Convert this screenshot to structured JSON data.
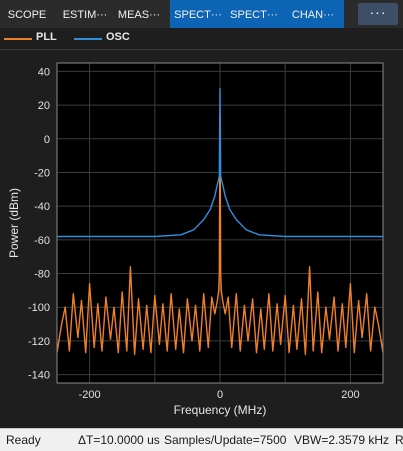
{
  "toolbar": {
    "tabs": [
      {
        "label": "SCOPE",
        "active": false
      },
      {
        "label": "ESTIM···",
        "active": false
      },
      {
        "label": "MEAS···",
        "active": false
      },
      {
        "label": "SPECT···",
        "active": true
      },
      {
        "label": "SPECT···",
        "active": true
      },
      {
        "label": "CHAN···",
        "active": true
      }
    ],
    "more_icon": "more-options-icon",
    "more_label": "···"
  },
  "legend": [
    {
      "name": "PLL",
      "color": "#f07f2a"
    },
    {
      "name": "OSC",
      "color": "#2f8fdc"
    }
  ],
  "status": {
    "state": "Ready",
    "delta_t": "ΔT=10.0000 us",
    "samples": "Samples/Update=7500",
    "vbw": "VBW=2.3579 kHz",
    "rbw": "R"
  },
  "colors": {
    "background": "#000000",
    "grid": "#3c3c3c",
    "axis_text": "#e0e0e0"
  },
  "chart_data": {
    "type": "line",
    "xlabel": "Frequency (MHz)",
    "ylabel": "Power (dBm)",
    "xlim": [
      -250,
      250
    ],
    "ylim": [
      -145,
      45
    ],
    "xticks": [
      -200,
      0,
      200
    ],
    "yticks": [
      40,
      20,
      0,
      -20,
      -40,
      -60,
      -80,
      -100,
      -120,
      -140
    ],
    "grid": true,
    "series": [
      {
        "name": "PLL",
        "description": "noise floor -128 to -105 dBm with harmonic spurs ~12.5 MHz apart and carrier at 0 MHz",
        "x": [
          -250,
          -243,
          -237.5,
          -231,
          -225,
          -218,
          -212.5,
          -206,
          -200,
          -193,
          -187.5,
          -181,
          -175,
          -168,
          -162.5,
          -156,
          -150,
          -143,
          -137.5,
          -131,
          -125,
          -118,
          -112.5,
          -106,
          -100,
          -93,
          -87.5,
          -81,
          -75,
          -68,
          -62.5,
          -56,
          -50,
          -43,
          -37.5,
          -31,
          -25,
          -18,
          -12.5,
          -8,
          -4,
          -2,
          -1,
          0,
          1,
          2,
          4,
          8,
          12.5,
          18,
          25,
          31,
          37.5,
          43,
          50,
          56,
          62.5,
          68,
          75,
          81,
          87.5,
          93,
          100,
          106,
          112.5,
          118,
          125,
          131,
          137.5,
          143,
          150,
          156,
          162.5,
          168,
          175,
          181,
          187.5,
          193,
          200,
          206,
          212.5,
          218,
          225,
          231,
          237.5,
          243,
          250
        ],
        "y": [
          -127,
          -110,
          -100,
          -126,
          -92,
          -118,
          -96,
          -127,
          -86,
          -124,
          -98,
          -126,
          -94,
          -119,
          -100,
          -127,
          -91,
          -126,
          -76,
          -128,
          -95,
          -125,
          -99,
          -127,
          -93,
          -122,
          -98,
          -126,
          -92,
          -125,
          -101,
          -127,
          -95,
          -120,
          -99,
          -126,
          -92,
          -124,
          -94,
          -104,
          -96,
          -90,
          -80,
          15,
          -80,
          -90,
          -96,
          -104,
          -94,
          -124,
          -92,
          -126,
          -99,
          -120,
          -95,
          -127,
          -101,
          -125,
          -92,
          -126,
          -98,
          -122,
          -93,
          -127,
          -99,
          -125,
          -95,
          -128,
          -76,
          -126,
          -91,
          -127,
          -100,
          -119,
          -94,
          -126,
          -98,
          -124,
          -86,
          -127,
          -96,
          -118,
          -92,
          -126,
          -100,
          -110,
          -127
        ]
      },
      {
        "name": "OSC",
        "description": "noise floor near -58 dBm rising to a peak at 0 MHz",
        "x": [
          -250,
          -200,
          -150,
          -100,
          -60,
          -40,
          -25,
          -15,
          -8,
          -4,
          -2,
          -1,
          0,
          1,
          2,
          4,
          8,
          15,
          25,
          40,
          60,
          100,
          150,
          200,
          250
        ],
        "y": [
          -58,
          -58,
          -58,
          -58,
          -57,
          -54,
          -48,
          -42,
          -34,
          -27,
          -24,
          -22,
          30,
          -22,
          -24,
          -27,
          -34,
          -42,
          -48,
          -54,
          -57,
          -58,
          -58,
          -58,
          -58
        ]
      }
    ]
  }
}
